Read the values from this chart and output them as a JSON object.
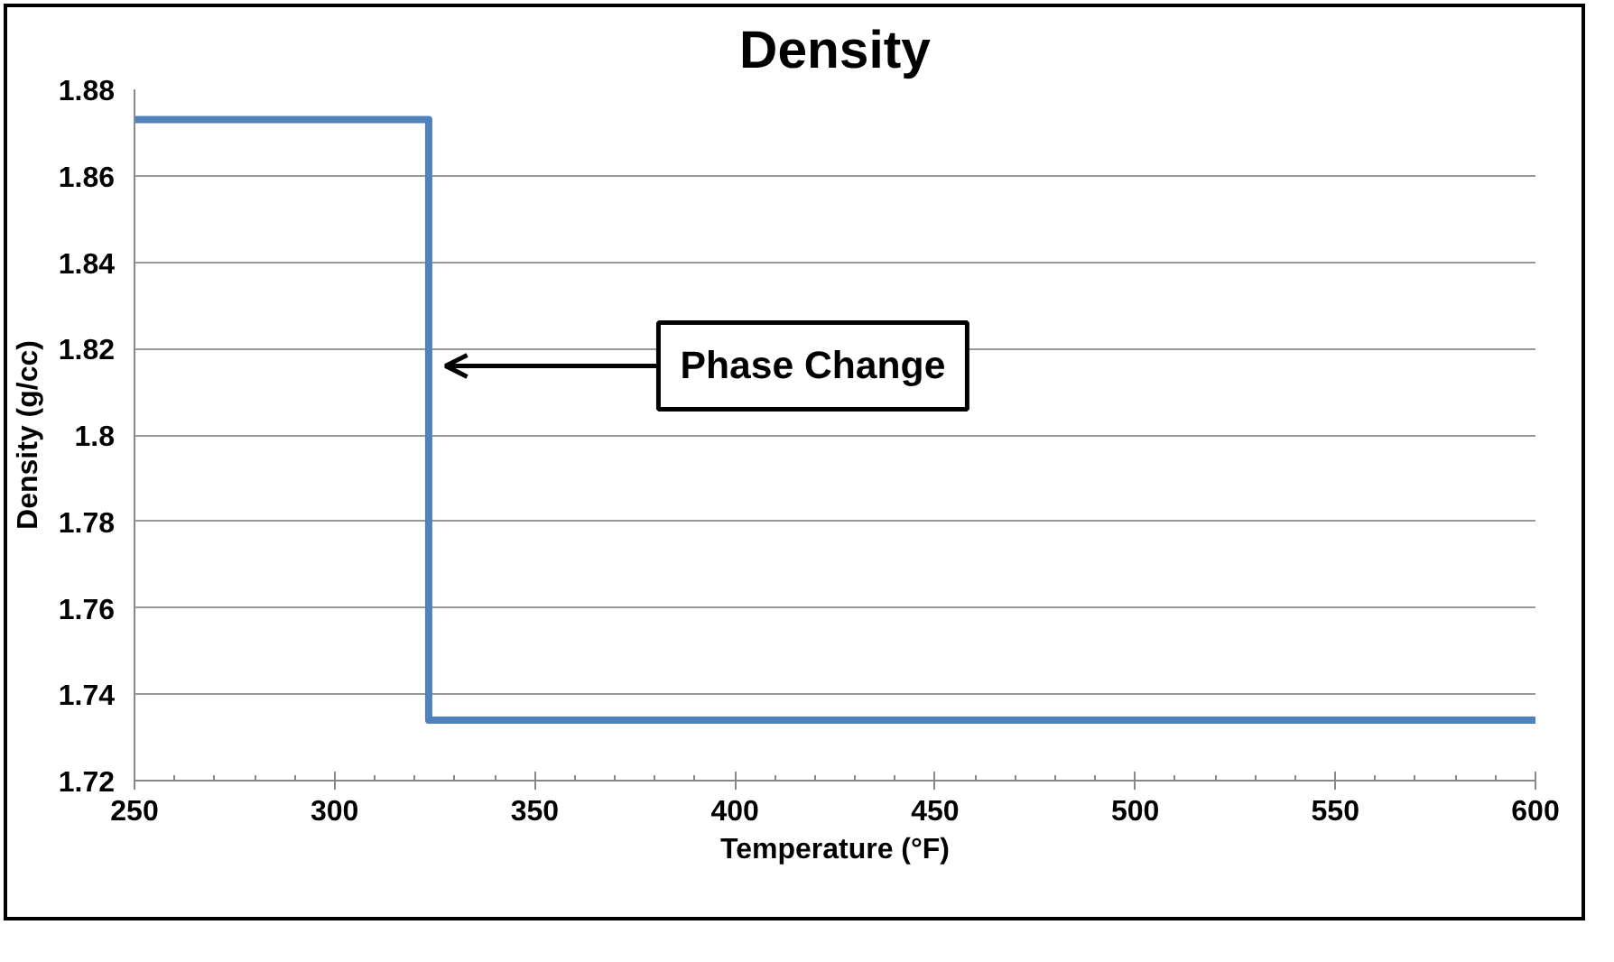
{
  "chart_data": {
    "type": "step",
    "title": "Density",
    "xlabel": "Temperature (°F)",
    "ylabel": "Density (g/cc)",
    "x": [
      250,
      323.5,
      600
    ],
    "series": [
      {
        "color": "#4f81bd",
        "values": [
          1.873,
          1.734,
          1.734
        ]
      }
    ],
    "xlim": [
      250,
      600
    ],
    "xticks": [
      250,
      300,
      350,
      400,
      450,
      500,
      550,
      600
    ],
    "ylim": [
      1.72,
      1.88
    ],
    "yticks": [
      1.72,
      1.74,
      1.76,
      1.78,
      1.8,
      1.82,
      1.84,
      1.86,
      1.88
    ],
    "grid": "y",
    "marker": "none",
    "line_style": "solid",
    "annotations": [
      "Phase Change"
    ]
  }
}
